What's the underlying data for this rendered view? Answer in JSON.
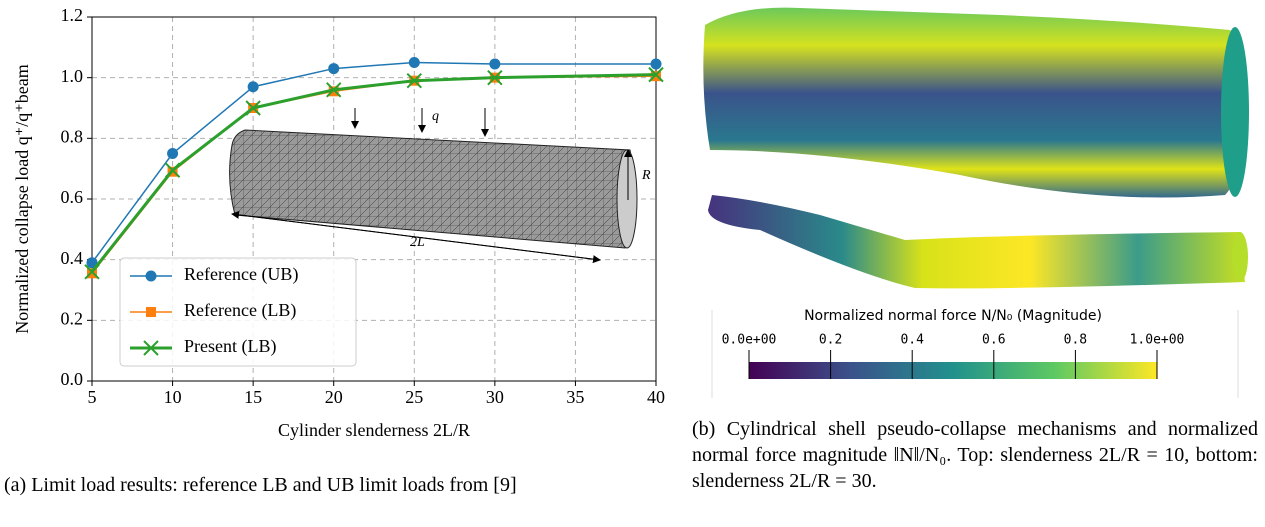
{
  "chart_data": {
    "type": "line",
    "xlabel": "Cylinder slenderness 2L/R",
    "ylabel": "Normalized collapse load q⁺/q⁺beam",
    "x": [
      5,
      10,
      15,
      20,
      25,
      30,
      40
    ],
    "series": [
      {
        "name": "Reference (UB)",
        "color": "#1f77b4",
        "marker": "circle",
        "values": [
          0.39,
          0.75,
          0.97,
          1.03,
          1.05,
          1.045,
          1.045
        ]
      },
      {
        "name": "Reference (LB)",
        "color": "#ff7f0e",
        "marker": "square",
        "values": [
          0.355,
          0.69,
          0.9,
          0.955,
          0.99,
          1.0,
          1.005
        ]
      },
      {
        "name": "Present (LB)",
        "color": "#2ca02c",
        "marker": "x",
        "values": [
          0.36,
          0.695,
          0.9,
          0.96,
          0.99,
          1.0,
          1.01
        ]
      }
    ],
    "xlim": [
      5,
      40
    ],
    "xticks": [
      5,
      10,
      15,
      20,
      25,
      30,
      35,
      40
    ],
    "ylim": [
      0,
      1.2
    ],
    "yticks": [
      {
        "value": 0,
        "label": "0.0"
      },
      0.2,
      0.4,
      0.6,
      0.8,
      {
        "value": 1,
        "label": "1.0"
      },
      1.2
    ],
    "grid": true,
    "legend": "lower left",
    "annotations": [
      "q",
      "R",
      "2L"
    ]
  },
  "colorbar": {
    "title": "Normalized normal force N/N₀ (Magnitude)",
    "range": [
      0,
      1
    ],
    "ticks": [
      {
        "value": 0,
        "label": "0.0e+00"
      },
      0.2,
      0.4,
      0.6,
      0.8,
      {
        "value": 1,
        "label": "1.0e+00"
      }
    ]
  },
  "captions": {
    "a": "(a) Limit load results: reference LB and UB limit loads from [9]",
    "b": "(b) Cylindrical shell pseudo-collapse mechanisms and normalized normal force magnitude ‖N‖/N₀. Top: slenderness 2L/R = 10, bottom: slenderness 2L/R = 30."
  }
}
